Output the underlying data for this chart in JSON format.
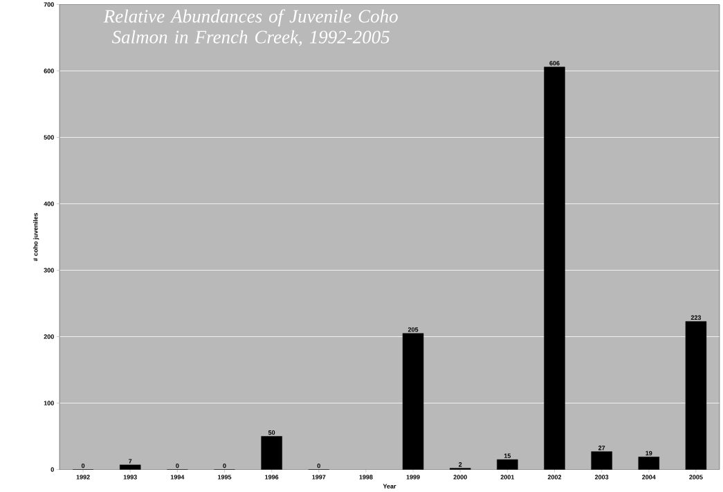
{
  "chart_data": {
    "type": "bar",
    "title": "Relative Abundances of Juvenile Coho Salmon in French Creek, 1992-2005",
    "xlabel": "Year",
    "ylabel": "# coho juveniles",
    "categories": [
      "1992",
      "1993",
      "1994",
      "1995",
      "1996",
      "1997",
      "1998",
      "1999",
      "2000",
      "2001",
      "2002",
      "2003",
      "2004",
      "2005"
    ],
    "values": [
      0,
      7,
      0,
      0,
      50,
      0,
      null,
      205,
      2,
      15,
      606,
      27,
      19,
      223
    ],
    "value_labels": [
      "0",
      "7",
      "0",
      "0",
      "50",
      "0",
      null,
      "205",
      "2",
      "15",
      "606",
      "27",
      "19",
      "223"
    ],
    "color": "#000000",
    "ylim": [
      0,
      700
    ],
    "yticks": [
      0,
      100,
      200,
      300,
      400,
      500,
      600,
      700
    ],
    "grid": "y"
  }
}
